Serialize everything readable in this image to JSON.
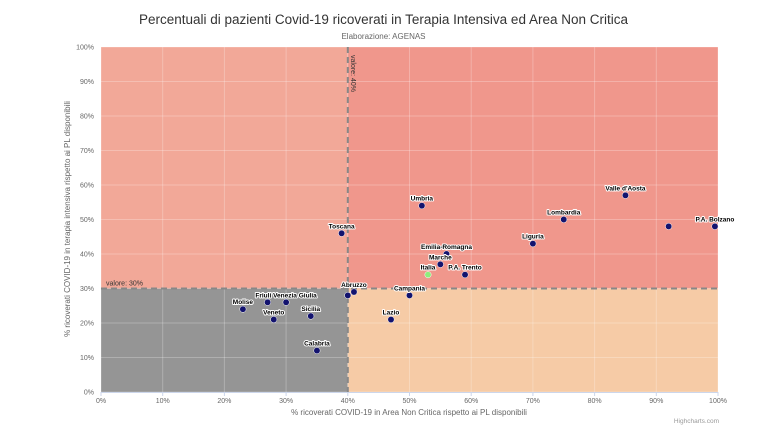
{
  "chart_data": {
    "type": "scatter",
    "title": "Percentuali di pazienti Covid-19 ricoverati in Terapia Intensiva ed Area Non Critica",
    "subtitle": "Elaborazione: AGENAS",
    "xlabel": "% ricoverati COVID-19 in Area Non Critica rispetto ai PL disponibili",
    "ylabel": "% ricoverati COVID-19 in terapia intensiva rispetto ai PL disponibili",
    "xlim": [
      0,
      100
    ],
    "ylim": [
      0,
      100
    ],
    "x_ticks": [
      "0%",
      "10%",
      "20%",
      "30%",
      "40%",
      "50%",
      "60%",
      "70%",
      "80%",
      "90%",
      "100%"
    ],
    "y_ticks": [
      "0%",
      "10%",
      "20%",
      "30%",
      "40%",
      "50%",
      "60%",
      "70%",
      "80%",
      "90%",
      "100%"
    ],
    "thresholds": {
      "x": {
        "value": 40,
        "label": "valore: 40%"
      },
      "y": {
        "value": 30,
        "label": "valore: 30%"
      }
    },
    "quadrant_colors": {
      "upper_left": "#f2a898",
      "upper_right": "#f0978c",
      "lower_left": "#959595",
      "lower_right": "#f6cba6"
    },
    "point_color": "#13136e",
    "highlight_color": "#90ed7d",
    "points": [
      {
        "label": "Valle d'Aosta",
        "x": 85,
        "y": 57
      },
      {
        "label": "Umbria",
        "x": 52,
        "y": 54
      },
      {
        "label": "Lombardia",
        "x": 75,
        "y": 50
      },
      {
        "label": "P.A. Bolzano",
        "x": 99.5,
        "y": 48
      },
      {
        "label": "",
        "x": 92,
        "y": 48
      },
      {
        "label": "Toscana",
        "x": 39,
        "y": 46
      },
      {
        "label": "Liguria",
        "x": 70,
        "y": 43
      },
      {
        "label": "Emilia-Romagna",
        "x": 56,
        "y": 40
      },
      {
        "label": "Marche",
        "x": 55,
        "y": 37
      },
      {
        "label": "Italia",
        "x": 53,
        "y": 34,
        "highlight": true
      },
      {
        "label": "P.A. Trento",
        "x": 59,
        "y": 34
      },
      {
        "label": "Abruzzo",
        "x": 41,
        "y": 29
      },
      {
        "label": "",
        "x": 40,
        "y": 28
      },
      {
        "label": "Campania",
        "x": 50,
        "y": 28
      },
      {
        "label": "Friuli Venezia Giulia",
        "x": 30,
        "y": 26
      },
      {
        "label": "",
        "x": 27,
        "y": 26
      },
      {
        "label": "Molise",
        "x": 23,
        "y": 24
      },
      {
        "label": "Veneto",
        "x": 28,
        "y": 21
      },
      {
        "label": "Sicilia",
        "x": 34,
        "y": 22
      },
      {
        "label": "Lazio",
        "x": 47,
        "y": 21
      },
      {
        "label": "Calabria",
        "x": 35,
        "y": 12
      }
    ]
  },
  "credits": "Highcharts.com"
}
